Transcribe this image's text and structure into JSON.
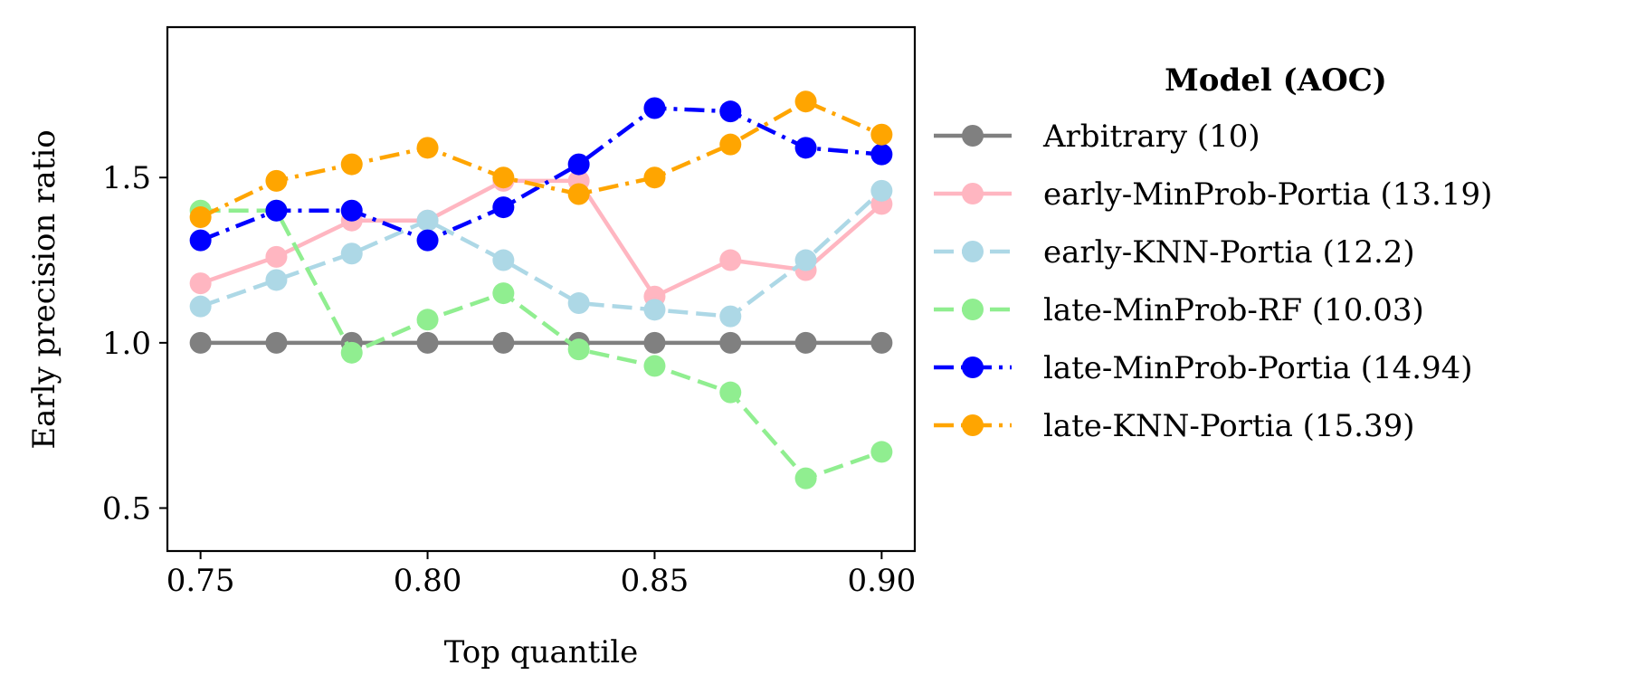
{
  "chart_data": {
    "type": "line",
    "xlabel": "Top quantile",
    "ylabel": "Early precision ratio",
    "xlim": [
      0.7427,
      0.9073
    ],
    "ylim": [
      0.37,
      1.955
    ],
    "xticks": [
      0.75,
      0.8,
      0.85,
      0.9
    ],
    "xtick_labels": [
      "0.75",
      "0.80",
      "0.85",
      "0.90"
    ],
    "yticks": [
      0.5,
      1.0,
      1.5
    ],
    "ytick_labels": [
      "0.5",
      "1.0",
      "1.5"
    ],
    "grid": false,
    "legend": {
      "title": "Model (AOC)",
      "placement": "outside-right"
    },
    "x": [
      0.75,
      0.7667,
      0.7833,
      0.8,
      0.8167,
      0.8333,
      0.85,
      0.8667,
      0.8833,
      0.9
    ],
    "series": [
      {
        "name": "Arbitrary (10)",
        "color": "#808080",
        "dash": "solid",
        "values": [
          1.0,
          1.0,
          1.0,
          1.0,
          1.0,
          1.0,
          1.0,
          1.0,
          1.0,
          1.0
        ]
      },
      {
        "name": "early-MinProb-Portia (13.19)",
        "color": "#ffb6c1",
        "dash": "solid",
        "values": [
          1.18,
          1.26,
          1.37,
          1.37,
          1.49,
          1.49,
          1.14,
          1.25,
          1.22,
          1.42
        ]
      },
      {
        "name": "early-KNN-Portia (12.2)",
        "color": "#add8e6",
        "dash": "dashed",
        "values": [
          1.11,
          1.19,
          1.27,
          1.37,
          1.25,
          1.12,
          1.1,
          1.08,
          1.25,
          1.46
        ]
      },
      {
        "name": "late-MinProb-RF (10.03)",
        "color": "#90ee90",
        "dash": "dashed",
        "values": [
          1.4,
          1.4,
          0.97,
          1.07,
          1.15,
          0.98,
          0.93,
          0.85,
          0.59,
          0.67
        ]
      },
      {
        "name": "late-MinProb-Portia (14.94)",
        "color": "#0000ff",
        "dash": "dashdot",
        "values": [
          1.31,
          1.4,
          1.4,
          1.31,
          1.41,
          1.54,
          1.71,
          1.7,
          1.59,
          1.57
        ]
      },
      {
        "name": "late-KNN-Portia (15.39)",
        "color": "#ffa500",
        "dash": "dashdot",
        "values": [
          1.38,
          1.49,
          1.54,
          1.59,
          1.5,
          1.45,
          1.5,
          1.6,
          1.73,
          1.63
        ]
      }
    ]
  }
}
